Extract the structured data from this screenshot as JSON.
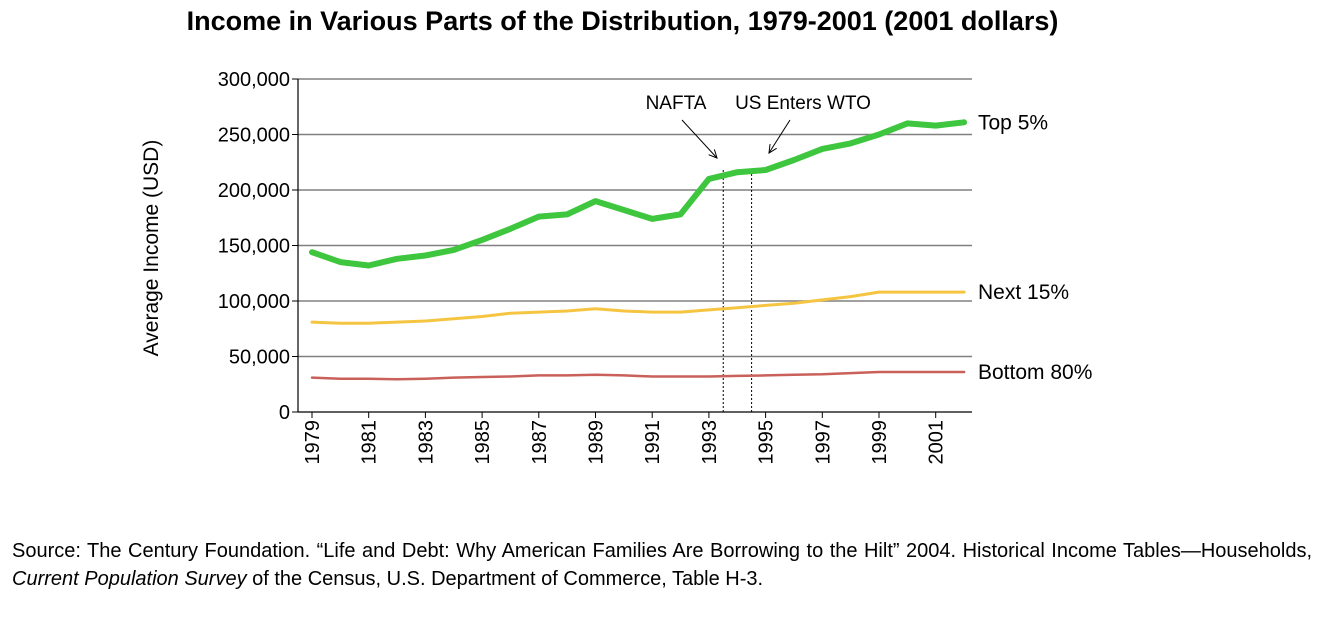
{
  "chart_data": {
    "type": "line",
    "title": "Income in Various Parts of the Distribution, 1979-2001 (2001 dollars)",
    "xlabel": "",
    "ylabel": "Average Income (USD)",
    "ylim": [
      0,
      300000
    ],
    "yticks": [
      "0",
      "50,000",
      "100,000",
      "150,000",
      "200,000",
      "250,000",
      "300,000"
    ],
    "xticks": [
      "1979",
      "1981",
      "1983",
      "1985",
      "1987",
      "1989",
      "1991",
      "1993",
      "1995",
      "1997",
      "1999",
      "2001"
    ],
    "x": [
      1979,
      1980,
      1981,
      1982,
      1983,
      1984,
      1985,
      1986,
      1987,
      1988,
      1989,
      1990,
      1991,
      1992,
      1993,
      1994,
      1995,
      1996,
      1997,
      1998,
      1999,
      2000,
      2001,
      2002
    ],
    "series": [
      {
        "name": "Top 5%",
        "color": "#3ec63e",
        "values": [
          144000,
          135000,
          132000,
          138000,
          141000,
          146000,
          155000,
          165000,
          176000,
          178000,
          190000,
          182000,
          174000,
          178000,
          210000,
          216000,
          218000,
          227000,
          237000,
          242000,
          250000,
          260000,
          258000,
          261000
        ]
      },
      {
        "name": "Next 15%",
        "color": "#f5c542",
        "values": [
          81000,
          80000,
          80000,
          81000,
          82000,
          84000,
          86000,
          89000,
          90000,
          91000,
          93000,
          91000,
          90000,
          90000,
          92000,
          94000,
          96000,
          98000,
          101000,
          104000,
          108000,
          108000,
          108000,
          108000
        ]
      },
      {
        "name": "Bottom 80%",
        "color": "#c9605a",
        "values": [
          31000,
          30000,
          30000,
          29500,
          30000,
          31000,
          31500,
          32000,
          33000,
          33000,
          33500,
          33000,
          32000,
          32000,
          32000,
          32500,
          33000,
          33500,
          34000,
          35000,
          36000,
          36000,
          36000,
          36000
        ]
      }
    ],
    "annotations": [
      {
        "label": "NAFTA",
        "x": 1994
      },
      {
        "label": "US Enters WTO",
        "x": 1995
      }
    ],
    "grid": true
  },
  "source": {
    "prefix": "Source: The Century Foundation.  “Life and Debt: Why American Families Are Borrowing to the Hilt” 2004. Historical Income Tables—Households, ",
    "italic": "Current Population Survey",
    "suffix": " of the Census, U.S. Department of Commerce, Table H-3."
  }
}
